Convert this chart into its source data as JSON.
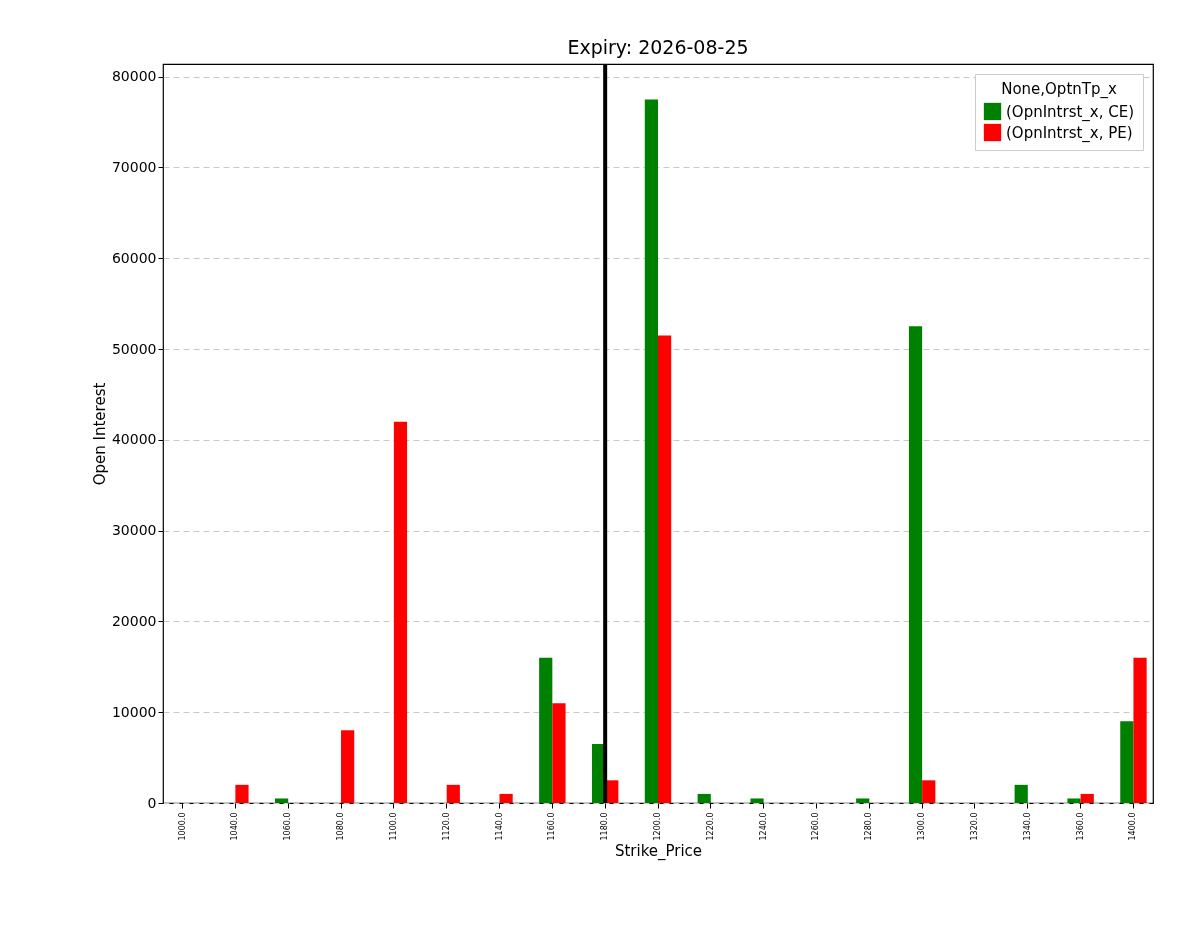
{
  "chart_data": {
    "type": "bar",
    "title": "Expiry: 2026-08-25",
    "xlabel": "Strike_Price",
    "ylabel": "Open Interest",
    "legend_title": "None,OptnTp_x",
    "categories": [
      "1000.0",
      "1040.0",
      "1060.0",
      "1080.0",
      "1100.0",
      "1120.0",
      "1140.0",
      "1160.0",
      "1180.0",
      "1200.0",
      "1220.0",
      "1240.0",
      "1260.0",
      "1280.0",
      "1300.0",
      "1320.0",
      "1340.0",
      "1360.0",
      "1400.0"
    ],
    "series": [
      {
        "name": "(OpnIntrst_x, CE)",
        "color": "#008000",
        "values": [
          0,
          0,
          500,
          0,
          0,
          0,
          0,
          16000,
          6500,
          77500,
          1000,
          500,
          0,
          500,
          52500,
          0,
          2000,
          500,
          9000
        ]
      },
      {
        "name": "(OpnIntrst_x, PE)",
        "color": "#ff0000",
        "values": [
          0,
          2000,
          0,
          8000,
          42000,
          2000,
          1000,
          11000,
          2500,
          51500,
          0,
          0,
          0,
          0,
          2500,
          0,
          0,
          1000,
          16000
        ]
      }
    ],
    "ylim": [
      0,
      81400
    ],
    "yticks": [
      0,
      10000,
      20000,
      30000,
      40000,
      50000,
      60000,
      70000,
      80000
    ],
    "ref_lines": [
      {
        "axis": "x",
        "value": "1180.0",
        "color": "#000000"
      }
    ],
    "grid": "y",
    "legend": "top right"
  }
}
